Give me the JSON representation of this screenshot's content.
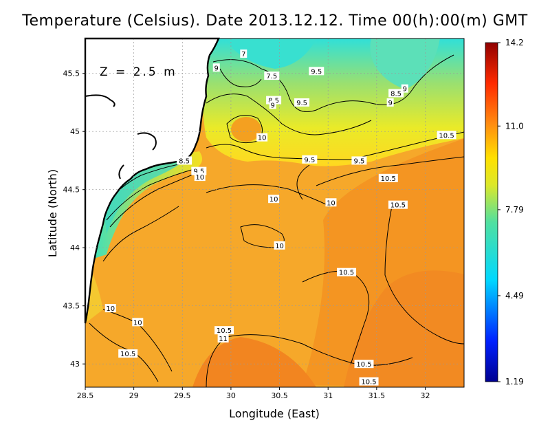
{
  "title": "Temperature (Celsius). Date 2013.12.12. Time 00(h):00(m)  GMT",
  "depth_label": "Z = 2.5 m",
  "xaxis": {
    "label": "Longitude (East)",
    "ticks": [
      "28.5",
      "29",
      "29.5",
      "30",
      "30.5",
      "31",
      "31.5",
      "32"
    ],
    "values": [
      28.5,
      29,
      29.5,
      30,
      30.5,
      31,
      31.5,
      32
    ],
    "range": [
      28.5,
      32.4
    ]
  },
  "yaxis": {
    "label": "Latitude (North)",
    "ticks": [
      "43",
      "43.5",
      "44",
      "44.5",
      "45",
      "45.5"
    ],
    "values": [
      43,
      43.5,
      44,
      44.5,
      45,
      45.5
    ],
    "range": [
      42.8,
      45.8
    ]
  },
  "colorbar": {
    "ticks": [
      "14.2",
      "11.0",
      "7.79",
      "4.49",
      "1.19"
    ],
    "values": [
      14.2,
      11.0,
      7.79,
      4.49,
      1.19
    ],
    "min": 1.19,
    "max": 14.2
  },
  "contour_labels": [
    {
      "text": "7",
      "lon": 30.13,
      "lat": 45.67
    },
    {
      "text": "9",
      "lon": 29.85,
      "lat": 45.55
    },
    {
      "text": "7.5",
      "lon": 30.42,
      "lat": 45.48
    },
    {
      "text": "9.5",
      "lon": 30.88,
      "lat": 45.52
    },
    {
      "text": "8.5",
      "lon": 31.7,
      "lat": 45.33
    },
    {
      "text": "9",
      "lon": 31.79,
      "lat": 45.37
    },
    {
      "text": "9",
      "lon": 31.64,
      "lat": 45.25
    },
    {
      "text": "8.5",
      "lon": 30.44,
      "lat": 45.27
    },
    {
      "text": "9",
      "lon": 30.43,
      "lat": 45.23
    },
    {
      "text": "9.5",
      "lon": 30.73,
      "lat": 45.25
    },
    {
      "text": "10",
      "lon": 30.32,
      "lat": 44.95
    },
    {
      "text": "10.5",
      "lon": 32.22,
      "lat": 44.97
    },
    {
      "text": "8.5",
      "lon": 29.52,
      "lat": 44.75
    },
    {
      "text": "9.5",
      "lon": 30.81,
      "lat": 44.76
    },
    {
      "text": "9.5",
      "lon": 31.32,
      "lat": 44.75
    },
    {
      "text": "9.5",
      "lon": 29.67,
      "lat": 44.66
    },
    {
      "text": "10",
      "lon": 29.68,
      "lat": 44.61
    },
    {
      "text": "10.5",
      "lon": 31.62,
      "lat": 44.6
    },
    {
      "text": "10",
      "lon": 30.44,
      "lat": 44.42
    },
    {
      "text": "10",
      "lon": 31.03,
      "lat": 44.39
    },
    {
      "text": "10.5",
      "lon": 31.72,
      "lat": 44.37
    },
    {
      "text": "10",
      "lon": 30.5,
      "lat": 44.02
    },
    {
      "text": "10.5",
      "lon": 31.19,
      "lat": 43.79
    },
    {
      "text": "10",
      "lon": 28.76,
      "lat": 43.48
    },
    {
      "text": "10",
      "lon": 29.04,
      "lat": 43.36
    },
    {
      "text": "10.5",
      "lon": 29.93,
      "lat": 43.29
    },
    {
      "text": "11",
      "lon": 29.92,
      "lat": 43.22
    },
    {
      "text": "10.5",
      "lon": 28.94,
      "lat": 43.09
    },
    {
      "text": "10.5",
      "lon": 31.37,
      "lat": 43.0
    },
    {
      "text": "10.5",
      "lon": 31.42,
      "lat": 42.85
    }
  ]
}
